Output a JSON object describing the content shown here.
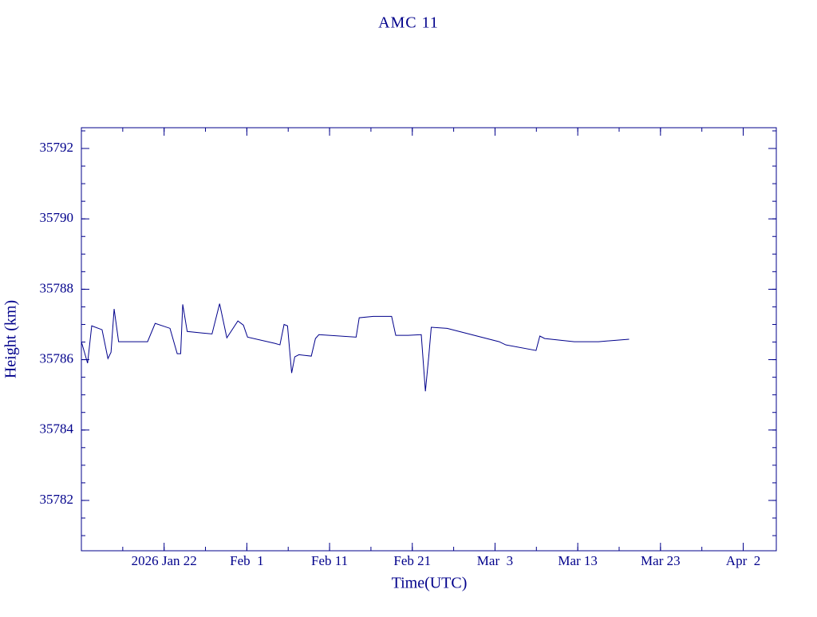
{
  "chart_data": {
    "type": "line",
    "title": "AMC 11",
    "x_label": "Time(UTC)",
    "y_label": "Height (km)",
    "color": "#00008b",
    "x": [
      "2026-01-12T00:00",
      "2026-01-12T18:00",
      "2026-01-13T06:00",
      "2026-01-14T12:00",
      "2026-01-15T05:00",
      "2026-01-15T14:00",
      "2026-01-15T23:00",
      "2026-01-16T12:00",
      "2026-01-20T00:00",
      "2026-01-20T22:00",
      "2026-01-22T17:00",
      "2026-01-23T14:00",
      "2026-01-24T00:00",
      "2026-01-24T06:00",
      "2026-01-24T19:00",
      "2026-01-27T19:00",
      "2026-01-28T17:00",
      "2026-01-29T14:00",
      "2026-01-30T22:00",
      "2026-01-31T14:00",
      "2026-02-01T02:00",
      "2026-02-04T10:00",
      "2026-02-05T00:00",
      "2026-02-05T12:00",
      "2026-02-05T22:00",
      "2026-02-06T10:00",
      "2026-02-06T19:00",
      "2026-02-07T07:00",
      "2026-02-08T19:00",
      "2026-02-09T07:00",
      "2026-02-09T17:00",
      "2026-02-14T05:00",
      "2026-02-14T14:00",
      "2026-02-16T07:00",
      "2026-02-18T12:00",
      "2026-02-19T00:00",
      "2026-02-20T12:00",
      "2026-02-22T02:00",
      "2026-02-22T14:00",
      "2026-02-23T00:00",
      "2026-02-23T07:00",
      "2026-02-25T05:00",
      "2026-03-03T12:00",
      "2026-03-04T07:00",
      "2026-03-07T23:00",
      "2026-03-08T10:00",
      "2026-03-09T00:00",
      "2026-03-12T14:00",
      "2026-03-15T12:00",
      "2026-03-19T05:00"
    ],
    "values": [
      35786.51,
      35785.9,
      35786.96,
      35786.85,
      35786.03,
      35786.21,
      35787.44,
      35786.51,
      35786.51,
      35787.03,
      35786.89,
      35786.17,
      35786.17,
      35787.57,
      35786.8,
      35786.73,
      35787.59,
      35786.62,
      35787.1,
      35786.98,
      35786.64,
      35786.46,
      35786.42,
      35787.0,
      35786.96,
      35785.62,
      35786.08,
      35786.14,
      35786.1,
      35786.6,
      35786.71,
      35786.64,
      35787.19,
      35787.23,
      35787.23,
      35786.69,
      35786.69,
      35786.71,
      35785.1,
      35786.12,
      35786.92,
      35786.89,
      35786.51,
      35786.42,
      35786.26,
      35786.67,
      35786.6,
      35786.51,
      35786.51,
      35786.58
    ],
    "xlim": [
      "2026-01-12T00:00",
      "2026-04-06T00:00"
    ],
    "xticks": [
      {
        "value": "2026-01-22T00:00",
        "label": "2026 Jan 22"
      },
      {
        "value": "2026-02-01T00:00",
        "label": "Feb  1"
      },
      {
        "value": "2026-02-11T00:00",
        "label": "Feb 11"
      },
      {
        "value": "2026-02-21T00:00",
        "label": "Feb 21"
      },
      {
        "value": "2026-03-03T00:00",
        "label": "Mar  3"
      },
      {
        "value": "2026-03-13T00:00",
        "label": "Mar 13"
      },
      {
        "value": "2026-03-23T00:00",
        "label": "Mar 23"
      },
      {
        "value": "2026-04-02T00:00",
        "label": "Apr  2"
      }
    ],
    "x_minor_step_days": 5,
    "ylim": [
      35780.57,
      35792.59
    ],
    "yticks": [
      35782,
      35784,
      35786,
      35788,
      35790,
      35792
    ],
    "y_minor_step": 0.5
  }
}
